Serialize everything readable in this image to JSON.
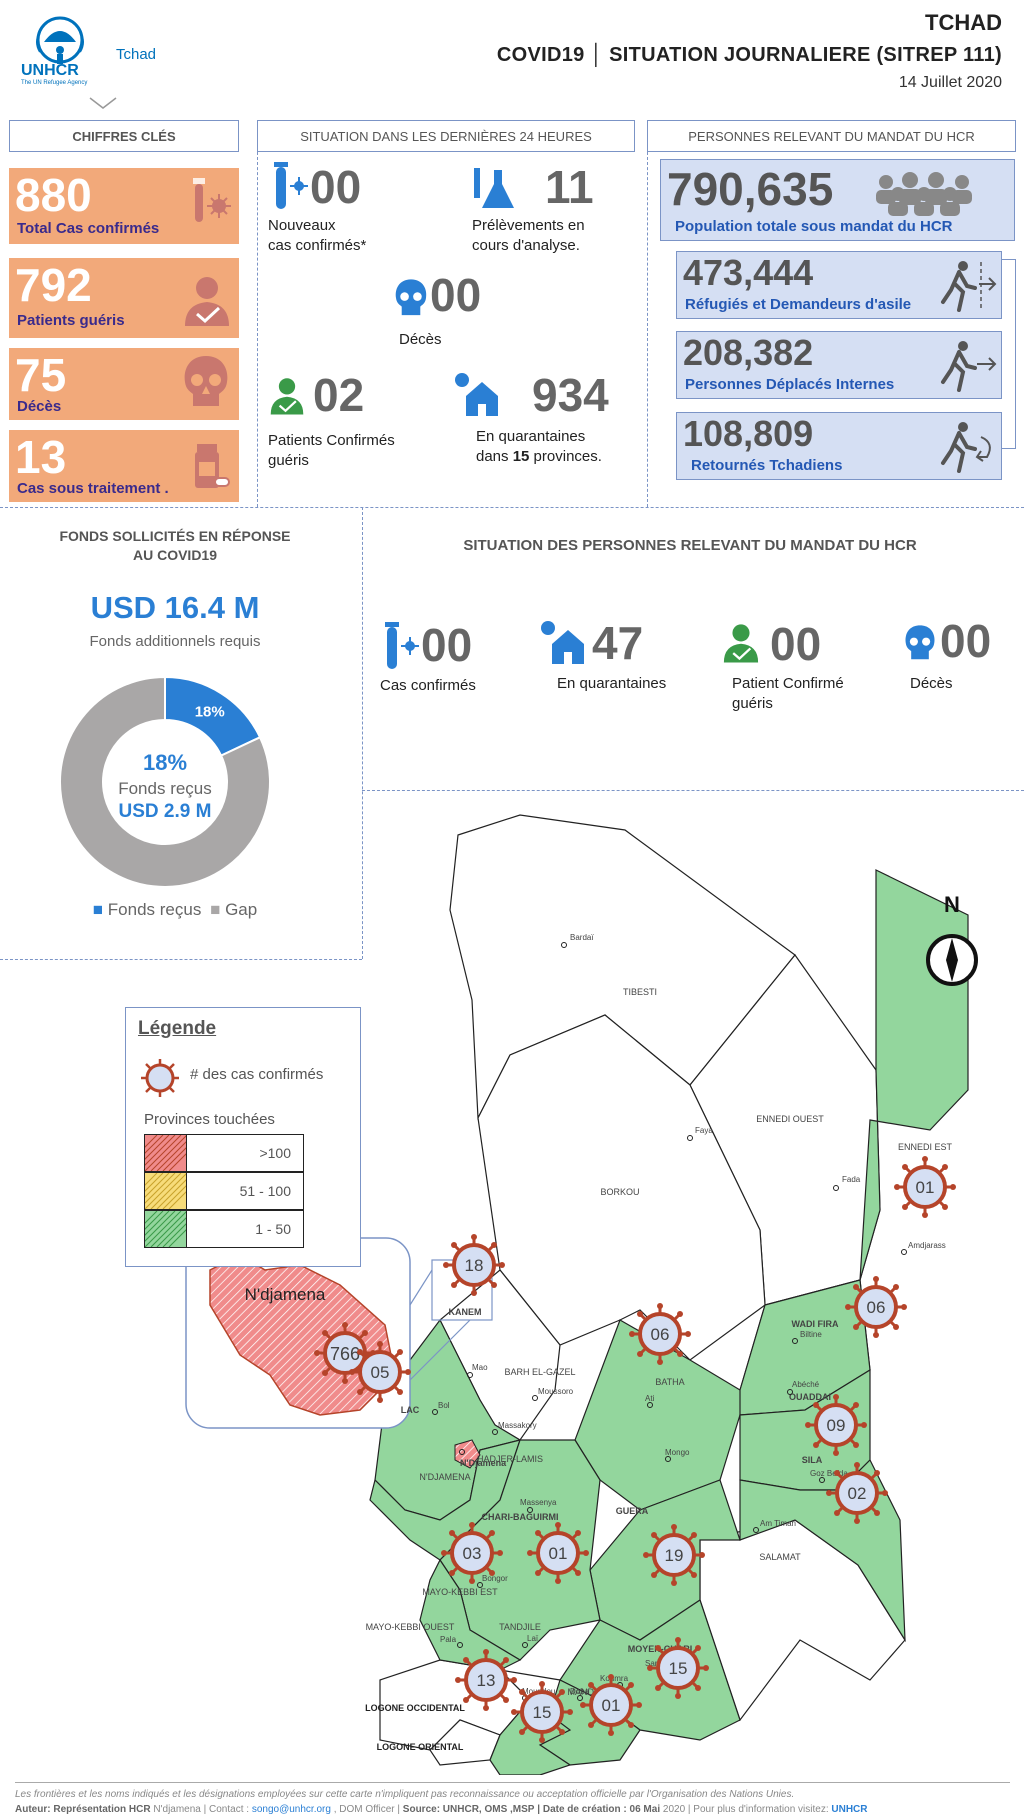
{
  "header": {
    "org": "UNHCR",
    "org_sub": "The UN Refugee Agency",
    "country_tag": "Tchad",
    "country": "TCHAD",
    "title": "COVID19 │ SITUATION JOURNALIERE (SITREP 111)",
    "date": "14 Juillet 2020"
  },
  "sections": {
    "key_figures": "CHIFFRES CLÉS",
    "last_24h": "SITUATION  DANS LES DERNIÈRES 24 HEURES",
    "mandate": "PERSONNES RELEVANT DU MANDAT DU HCR"
  },
  "key_figures": [
    {
      "value": "880",
      "label": "Total Cas confirmés"
    },
    {
      "value": "792",
      "label": "Patients guéris"
    },
    {
      "value": "75",
      "label": "Décès"
    },
    {
      "value": "13",
      "label": "Cas sous traitement ."
    }
  ],
  "last_24h": {
    "new_cases_value": "00",
    "new_cases_label1": "Nouveaux",
    "new_cases_label2": "cas confirmés*",
    "samples_value": "11",
    "samples_label1": "Prélèvements en",
    "samples_label2": "cours d'analyse.",
    "deaths_value": "00",
    "deaths_label": "Décès",
    "recovered_value": "02",
    "recovered_label1": "Patients Confirmés",
    "recovered_label2": "guéris",
    "quarantine_value": "934",
    "quarantine_label1": "En quarantaines",
    "quarantine_label2_a": "dans ",
    "quarantine_label2_b": "15",
    "quarantine_label2_c": " provinces."
  },
  "mandate": {
    "total_value": "790,635",
    "total_label": "Population totale sous mandat du HCR",
    "groups": [
      {
        "value": "473,444",
        "label": "Réfugiés et Demandeurs d'asile"
      },
      {
        "value": "208,382",
        "label": "Personnes Déplacés Internes"
      },
      {
        "value": "108,809",
        "label": "Retournés Tchadiens"
      }
    ]
  },
  "funds": {
    "title1": "FONDS SOLLICITÉS EN RÉPONSE",
    "title2": "AU COVID19",
    "amount": "USD 16.4 M",
    "amount_label": "Fonds additionnels requis",
    "pct_slice": "18%",
    "pct_center": "18%",
    "received_label": "Fonds reçus",
    "received_amount": "USD 2.9 M",
    "legend_received": "Fonds reçus",
    "legend_gap": "Gap"
  },
  "chart_data": {
    "type": "pie",
    "categories": [
      "Fonds reçus",
      "Gap"
    ],
    "values": [
      18,
      82
    ],
    "colors": [
      "#2a7fd4",
      "#a9a7a7"
    ]
  },
  "hcr_situation": {
    "title": "SITUATION DES PERSONNES RELEVANT DU MANDAT DU HCR",
    "cases_value": "00",
    "cases_label": "Cas confirmés",
    "quarantine_value": "47",
    "quarantine_label": "En quarantaines",
    "recovered_value": "00",
    "recovered_label1": "Patient Confirmé",
    "recovered_label2": "guéris",
    "deaths_value": "00",
    "deaths_label": "Décès"
  },
  "legend": {
    "title": "Légende",
    "cases": "# des cas confirmés",
    "provinces": "Provinces touchées",
    "ranges": [
      ">100",
      "51 - 100",
      "1 - 50"
    ]
  },
  "map": {
    "north": "N",
    "inset_label": "N'djamena",
    "inset_count": "766",
    "regions": [
      "TIBESTI",
      "ENNEDI OUEST",
      "ENNEDI EST",
      "BORKOU",
      "KANEM",
      "BARH EL-GAZEL",
      "BATHA",
      "WADI FIRA",
      "OUADDAI",
      "LAC",
      "HADJER-LAMIS",
      "N'DJAMENA",
      "CHARI-BAGUIRMI",
      "GUERA",
      "SILA",
      "SALAMAT",
      "MAYO-KEBBI EST",
      "MAYO-KEBBI OUEST",
      "TANDJILE",
      "MOYEN-CHARI",
      "MANDOUL",
      "LOGONE OCCIDENTAL",
      "LOGONE ORIENTAL"
    ],
    "towns": [
      "Bardaï",
      "Faya",
      "Fada",
      "Amdjarass",
      "Biltine",
      "Abéché",
      "Goz Beïda",
      "Mao",
      "Bol",
      "Moussoro",
      "Massakory",
      "N'Djamena",
      "Ati",
      "Mongo",
      "Am Timan",
      "Massenya",
      "Bongor",
      "Pala",
      "Laï",
      "Sarh",
      "Koumra",
      "Doba",
      "Moundou"
    ],
    "counts": [
      "01",
      "18",
      "06",
      "06",
      "05",
      "09",
      "02",
      "03",
      "01",
      "19",
      "13",
      "15",
      "01",
      "15"
    ]
  },
  "footer": {
    "disclaimer": "Les frontières et les noms indiqués et les désignations employées sur cette carte n'impliquent pas reconnaissance ou acceptation officielle par l'Organisation des Nations Unies.",
    "author_label": "Auteur:",
    "author": "Représentation HCR",
    "author_rest": "N'djamena | Contact :",
    "email": "songo@unhcr.org",
    "contact_rest": ", DOM Officer |",
    "source_label": "Source: UNHCR, OMS ,MSP",
    "created_label": "| Date de création : 06 Mai",
    "created_rest": "2020 | Pour plus d'information visitez:",
    "site": "UNHCR"
  }
}
